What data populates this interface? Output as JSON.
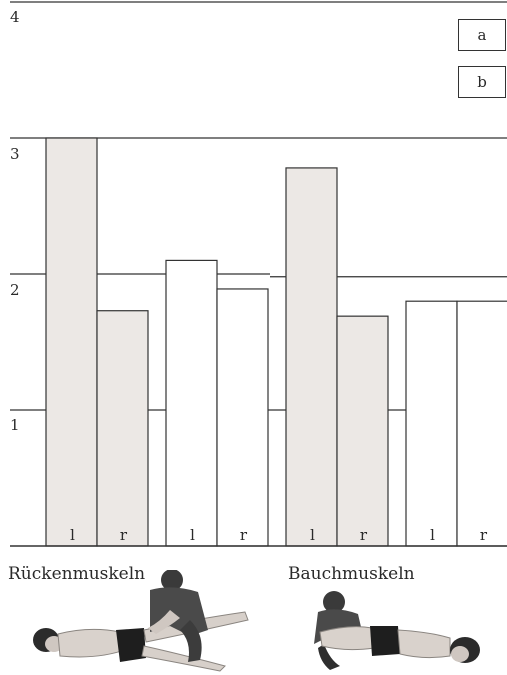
{
  "chart_data": {
    "type": "bar",
    "ylim": [
      0,
      4
    ],
    "y_ticks": [
      "1",
      "2",
      "3",
      "4"
    ],
    "grid": true,
    "legend_position": "top-right",
    "categories": [
      "l",
      "r",
      "l",
      "r",
      "l",
      "r",
      "l",
      "r"
    ],
    "groups": [
      "Rückenmuskeln",
      "Bauchmuskeln"
    ],
    "series": [
      {
        "name": "a",
        "fill": "#ece8e5",
        "values": [
          3.0,
          1.73,
          null,
          null,
          2.78,
          1.69,
          null,
          null
        ]
      },
      {
        "name": "b",
        "fill": "#ffffff",
        "values": [
          null,
          null,
          2.1,
          1.89,
          null,
          null,
          1.8,
          1.8
        ]
      }
    ],
    "reference_lines": [
      {
        "values": [
          1.0,
          2.0
        ]
      },
      {
        "values": [
          1.0,
          1.98
        ]
      }
    ],
    "colors": {
      "axis": "#333333",
      "bar_stroke": "#333333",
      "fill_a": "#ece8e5",
      "fill_b": "#ffffff"
    }
  },
  "photos": [
    {
      "name": "back-muscle-test-photo"
    },
    {
      "name": "abdominal-muscle-test-photo"
    }
  ]
}
